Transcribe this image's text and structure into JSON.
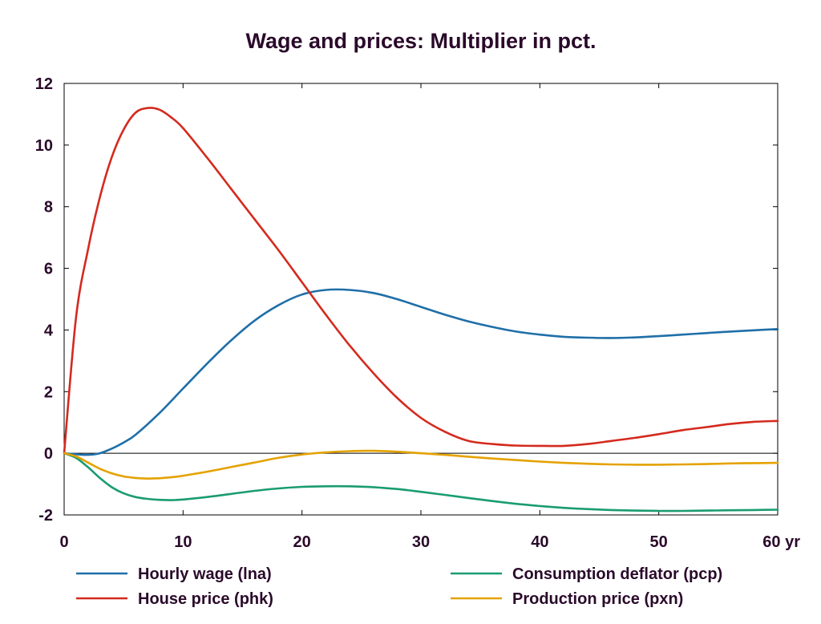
{
  "chart_data": {
    "type": "line",
    "title": "Wage and prices: Multiplier in pct.",
    "xlabel": "",
    "ylabel": "",
    "x_unit_label": "yr",
    "xlim": [
      0,
      60
    ],
    "ylim": [
      -2,
      12
    ],
    "x_ticks": [
      0,
      10,
      20,
      30,
      40,
      50,
      60
    ],
    "x_tick_labels": [
      "0",
      "10",
      "20",
      "30",
      "40",
      "50",
      "60 yr"
    ],
    "y_ticks": [
      -2,
      0,
      2,
      4,
      6,
      8,
      10,
      12
    ],
    "y_tick_labels": [
      "-2",
      "0",
      "2",
      "4",
      "6",
      "8",
      "10",
      "12"
    ],
    "grid": false,
    "zero_line": true,
    "legend_position": "bottom",
    "series": [
      {
        "name": "Hourly wage (lna)",
        "color": "#1f6fa8",
        "x": [
          0,
          1,
          2,
          3,
          4,
          5,
          6,
          8,
          10,
          12,
          14,
          16,
          18,
          20,
          22,
          24,
          26,
          28,
          30,
          32,
          34,
          36,
          38,
          40,
          42,
          44,
          46,
          48,
          50,
          52,
          54,
          56,
          58,
          60
        ],
        "values": [
          0,
          -0.03,
          -0.05,
          0.0,
          0.15,
          0.35,
          0.6,
          1.3,
          2.1,
          2.9,
          3.65,
          4.3,
          4.8,
          5.15,
          5.3,
          5.3,
          5.2,
          5.0,
          4.75,
          4.5,
          4.28,
          4.1,
          3.95,
          3.85,
          3.78,
          3.75,
          3.74,
          3.76,
          3.8,
          3.85,
          3.9,
          3.95,
          3.99,
          4.03
        ]
      },
      {
        "name": "House price (phk)",
        "color": "#d42a1e",
        "x": [
          0,
          1,
          2,
          3,
          4,
          5,
          6,
          7,
          8,
          9,
          10,
          12,
          14,
          16,
          18,
          20,
          22,
          24,
          26,
          28,
          30,
          32,
          34,
          36,
          38,
          40,
          42,
          44,
          46,
          48,
          50,
          52,
          54,
          56,
          58,
          60
        ],
        "values": [
          0,
          4.4,
          6.6,
          8.3,
          9.6,
          10.5,
          11.05,
          11.2,
          11.15,
          10.9,
          10.55,
          9.6,
          8.6,
          7.6,
          6.6,
          5.55,
          4.5,
          3.5,
          2.6,
          1.8,
          1.15,
          0.7,
          0.4,
          0.3,
          0.25,
          0.24,
          0.24,
          0.3,
          0.4,
          0.5,
          0.62,
          0.75,
          0.85,
          0.95,
          1.02,
          1.05
        ]
      },
      {
        "name": "Consumption deflator (pcp)",
        "color": "#1a9c72",
        "x": [
          0,
          1,
          2,
          3,
          4,
          5,
          6,
          7,
          8,
          9,
          10,
          12,
          14,
          16,
          18,
          20,
          22,
          24,
          26,
          28,
          30,
          32,
          34,
          36,
          38,
          40,
          42,
          44,
          46,
          48,
          50,
          52,
          54,
          56,
          58,
          60
        ],
        "values": [
          0,
          -0.15,
          -0.45,
          -0.8,
          -1.1,
          -1.3,
          -1.42,
          -1.48,
          -1.51,
          -1.52,
          -1.5,
          -1.42,
          -1.32,
          -1.22,
          -1.14,
          -1.09,
          -1.07,
          -1.07,
          -1.1,
          -1.16,
          -1.25,
          -1.35,
          -1.45,
          -1.55,
          -1.64,
          -1.71,
          -1.77,
          -1.81,
          -1.84,
          -1.86,
          -1.87,
          -1.87,
          -1.86,
          -1.85,
          -1.84,
          -1.83
        ]
      },
      {
        "name": "Production price (pxn)",
        "color": "#e4a200",
        "x": [
          0,
          1,
          2,
          3,
          4,
          5,
          6,
          7,
          8,
          9,
          10,
          12,
          14,
          16,
          18,
          20,
          22,
          24,
          26,
          28,
          30,
          32,
          34,
          36,
          38,
          40,
          42,
          44,
          46,
          48,
          50,
          52,
          54,
          56,
          58,
          60
        ],
        "values": [
          0,
          -0.1,
          -0.3,
          -0.5,
          -0.65,
          -0.75,
          -0.8,
          -0.82,
          -0.81,
          -0.78,
          -0.73,
          -0.6,
          -0.45,
          -0.3,
          -0.15,
          -0.04,
          0.03,
          0.07,
          0.08,
          0.05,
          0.0,
          -0.05,
          -0.11,
          -0.17,
          -0.22,
          -0.27,
          -0.31,
          -0.34,
          -0.36,
          -0.37,
          -0.37,
          -0.36,
          -0.35,
          -0.33,
          -0.32,
          -0.31
        ]
      }
    ]
  }
}
